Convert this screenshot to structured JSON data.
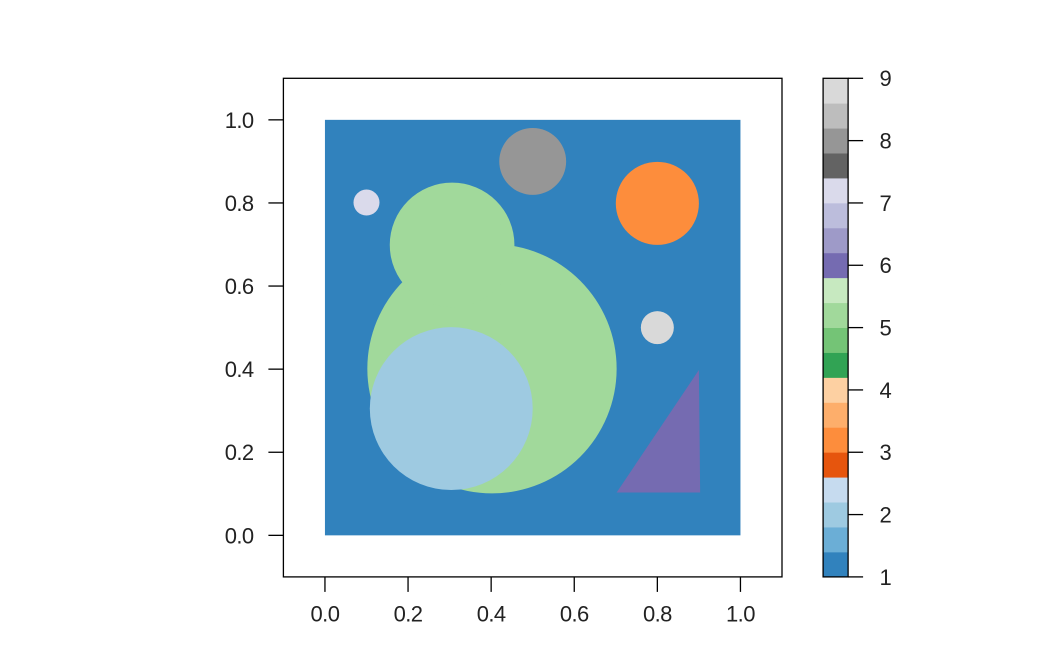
{
  "figure": {
    "background": "#ffffff",
    "axis_color": "#000000",
    "label_color": "#222222"
  },
  "chart_data": {
    "type": "heatmap",
    "title": "",
    "xlabel": "",
    "ylabel": "",
    "xlim": [
      -0.1,
      1.1
    ],
    "ylim": [
      -0.1,
      1.1
    ],
    "grid": false,
    "x_ticks": {
      "values": [
        0.0,
        0.2,
        0.4,
        0.6,
        0.8,
        1.0
      ],
      "labels": [
        "0.0",
        "0.2",
        "0.4",
        "0.6",
        "0.8",
        "1.0"
      ]
    },
    "y_ticks": {
      "values": [
        0.0,
        0.2,
        0.4,
        0.6,
        0.8,
        1.0
      ],
      "labels": [
        "0.0",
        "0.2",
        "0.4",
        "0.6",
        "0.8",
        "1.0"
      ]
    },
    "image_extent": {
      "x": [
        0,
        1
      ],
      "y": [
        0,
        1
      ]
    },
    "colormap": {
      "name": "tab20c-categorical-20",
      "range": [
        1,
        9
      ],
      "colors": [
        "#3182bd",
        "#6baed6",
        "#9ecae1",
        "#c6dbef",
        "#e6550d",
        "#fd8d3c",
        "#fdae6b",
        "#fdd0a2",
        "#31a354",
        "#74c476",
        "#a1d99b",
        "#c7e9c0",
        "#756bb1",
        "#9e9ac8",
        "#bcbddc",
        "#dadaeb",
        "#636363",
        "#969696",
        "#bdbdbd",
        "#d9d9d9"
      ]
    },
    "background_value": 1,
    "shapes": [
      {
        "kind": "circle",
        "name": "green-circle-big",
        "value": 5,
        "cx": 0.402,
        "cy": 0.401,
        "r": 0.3
      },
      {
        "kind": "circle",
        "name": "green-circle-small",
        "value": 5,
        "cx": 0.306,
        "cy": 0.699,
        "r": 0.15
      },
      {
        "kind": "circle",
        "name": "lightblue-circle",
        "value": 2,
        "cx": 0.304,
        "cy": 0.305,
        "r": 0.196
      },
      {
        "kind": "circle",
        "name": "gray-circle",
        "value": 8,
        "cx": 0.5,
        "cy": 0.9,
        "r": 0.0805
      },
      {
        "kind": "circle",
        "name": "orange-circle",
        "value": 3,
        "cx": 0.8,
        "cy": 0.799,
        "r": 0.1
      },
      {
        "kind": "circle",
        "name": "lavender-circle",
        "value": 7,
        "cx": 0.1,
        "cy": 0.801,
        "r": 0.0313
      },
      {
        "kind": "circle",
        "name": "lightgray-circle",
        "value": 9,
        "cx": 0.8,
        "cy": 0.5,
        "r": 0.0397
      },
      {
        "kind": "triangle",
        "name": "purple-triangle",
        "value": 6,
        "points": [
          [
            0.702,
            0.103
          ],
          [
            0.903,
            0.103
          ],
          [
            0.9,
            0.398
          ]
        ]
      }
    ],
    "colorbar": {
      "ticks": [
        1,
        2,
        3,
        4,
        5,
        6,
        7,
        8,
        9
      ],
      "labels": [
        "1",
        "2",
        "3",
        "4",
        "5",
        "6",
        "7",
        "8",
        "9"
      ],
      "position": "right"
    }
  }
}
